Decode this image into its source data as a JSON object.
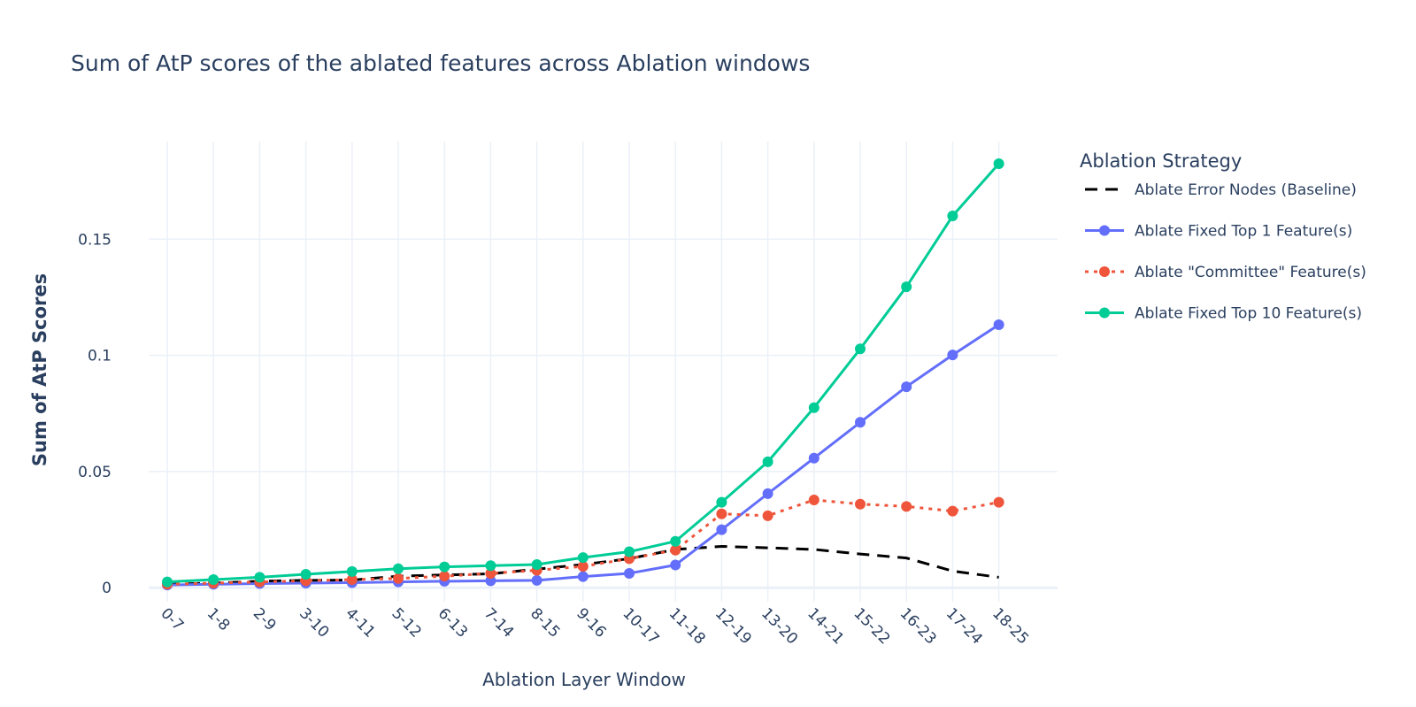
{
  "chart_data": {
    "type": "line",
    "title": "Sum of AtP scores of the ablated features across Ablation windows",
    "xlabel": "Ablation Layer Window",
    "ylabel": "Sum of AtP Scores",
    "categories": [
      "0-7",
      "1-8",
      "2-9",
      "3-10",
      "4-11",
      "5-12",
      "6-13",
      "7-14",
      "8-15",
      "9-16",
      "10-17",
      "11-18",
      "12-19",
      "13-20",
      "14-21",
      "15-22",
      "16-23",
      "17-24",
      "18-25"
    ],
    "ylim": [
      -0.006,
      0.192
    ],
    "yticks": [
      {
        "value": 0,
        "label": "0"
      },
      {
        "value": 0.05,
        "label": "0.05"
      },
      {
        "value": 0.1,
        "label": "0.1"
      },
      {
        "value": 0.15,
        "label": "0.15"
      }
    ],
    "grid": true,
    "legend": {
      "title": "Ablation Strategy",
      "placement": "right"
    },
    "series": [
      {
        "name": "Ablate Error Nodes (Baseline)",
        "color": "#000000",
        "dash": "dash",
        "markers": false,
        "values": [
          0.0015,
          0.002,
          0.0028,
          0.0032,
          0.0033,
          0.005,
          0.0055,
          0.006,
          0.008,
          0.01,
          0.0125,
          0.0165,
          0.0178,
          0.0172,
          0.0165,
          0.0145,
          0.0128,
          0.0072,
          0.0045
        ]
      },
      {
        "name": "Ablate Fixed Top 1 Feature(s)",
        "color": "#636efa",
        "dash": "solid",
        "markers": true,
        "values": [
          0.0012,
          0.0015,
          0.0018,
          0.002,
          0.0022,
          0.0025,
          0.0028,
          0.003,
          0.0032,
          0.0048,
          0.0062,
          0.0098,
          0.025,
          0.0405,
          0.0558,
          0.0712,
          0.0865,
          0.1002,
          0.1132
        ]
      },
      {
        "name": "Ablate \"Committee\" Feature(s)",
        "color": "#ef553b",
        "dash": "dot",
        "markers": true,
        "values": [
          0.0015,
          0.002,
          0.0025,
          0.003,
          0.0035,
          0.004,
          0.005,
          0.0062,
          0.0075,
          0.0092,
          0.0125,
          0.0162,
          0.0318,
          0.031,
          0.0378,
          0.036,
          0.035,
          0.033,
          0.0368
        ]
      },
      {
        "name": "Ablate Fixed Top 10 Feature(s)",
        "color": "#00cc96",
        "dash": "solid",
        "markers": true,
        "values": [
          0.0025,
          0.0035,
          0.0045,
          0.0058,
          0.007,
          0.0082,
          0.009,
          0.0095,
          0.01,
          0.013,
          0.0155,
          0.02,
          0.0368,
          0.0542,
          0.0775,
          0.1028,
          0.1295,
          0.16,
          0.1825
        ]
      }
    ]
  }
}
